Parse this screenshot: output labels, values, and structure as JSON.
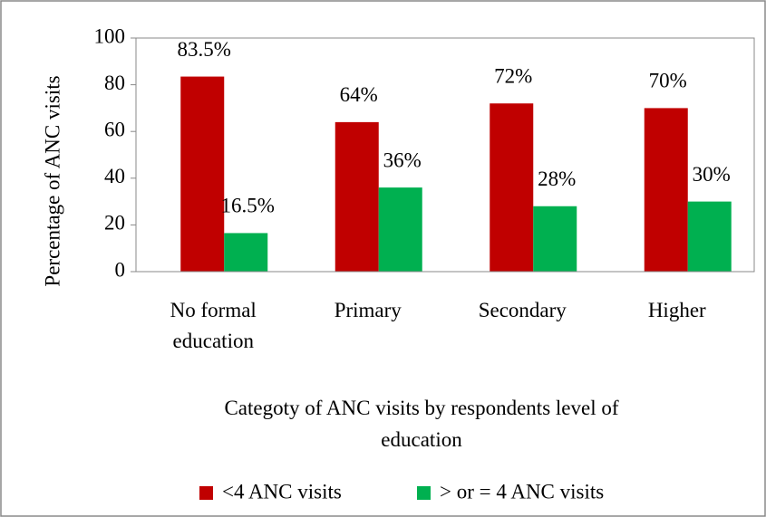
{
  "chart_data": {
    "type": "bar",
    "categories": [
      "No formal education",
      "Primary",
      "Secondary",
      "Higher"
    ],
    "series": [
      {
        "name": "<4 ANC visits",
        "color": "#c00000",
        "values": [
          83.5,
          64,
          72,
          70
        ],
        "value_labels": [
          "83.5%",
          "64%",
          "72%",
          "70%"
        ]
      },
      {
        "name": "> or = 4 ANC visits",
        "color": "#00b050",
        "values": [
          16.5,
          36,
          28,
          30
        ],
        "value_labels": [
          "16.5%",
          "36%",
          "28%",
          "30%"
        ]
      }
    ],
    "x_label": "Categoty of ANC visits by respondents level of education",
    "y_label": "Percentage of ANC visits",
    "ylim": [
      0,
      100
    ],
    "yticks": [
      0,
      20,
      40,
      60,
      80,
      100
    ],
    "grid": false,
    "legend": "bottom"
  }
}
